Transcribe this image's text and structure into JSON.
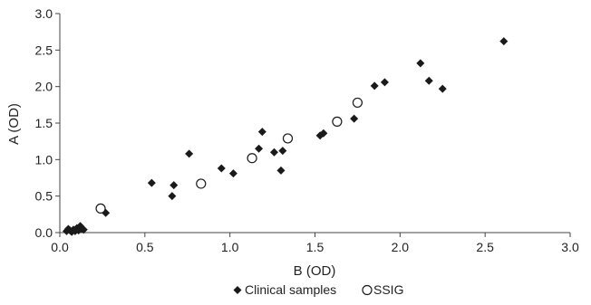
{
  "chart_data": {
    "type": "scatter",
    "title": "",
    "xlabel": "B (OD)",
    "ylabel": "A (OD)",
    "xlim": [
      0,
      3.0
    ],
    "ylim": [
      0,
      3.0
    ],
    "xticks": [
      "0.0",
      "0.5",
      "1.0",
      "1.5",
      "2.0",
      "2.5",
      "3.0"
    ],
    "yticks": [
      "0.0",
      "0.5",
      "1.0",
      "1.5",
      "2.0",
      "2.5",
      "3.0"
    ],
    "grid": false,
    "legend_position": "bottom",
    "series": [
      {
        "name": "Clinical samples",
        "marker": "filled-diamond",
        "color": "#1a1a1a",
        "points": [
          [
            0.04,
            0.02
          ],
          [
            0.05,
            0.05
          ],
          [
            0.06,
            0.03
          ],
          [
            0.07,
            0.01
          ],
          [
            0.08,
            0.04
          ],
          [
            0.09,
            0.02
          ],
          [
            0.1,
            0.06
          ],
          [
            0.11,
            0.03
          ],
          [
            0.12,
            0.09
          ],
          [
            0.13,
            0.05
          ],
          [
            0.14,
            0.04
          ],
          [
            0.27,
            0.27
          ],
          [
            0.54,
            0.68
          ],
          [
            0.66,
            0.5
          ],
          [
            0.67,
            0.65
          ],
          [
            0.76,
            1.08
          ],
          [
            0.95,
            0.88
          ],
          [
            1.02,
            0.81
          ],
          [
            1.17,
            1.15
          ],
          [
            1.19,
            1.38
          ],
          [
            1.26,
            1.1
          ],
          [
            1.3,
            0.85
          ],
          [
            1.31,
            1.12
          ],
          [
            1.53,
            1.33
          ],
          [
            1.55,
            1.36
          ],
          [
            1.73,
            1.56
          ],
          [
            1.85,
            2.01
          ],
          [
            1.91,
            2.06
          ],
          [
            2.12,
            2.32
          ],
          [
            2.17,
            2.08
          ],
          [
            2.25,
            1.97
          ],
          [
            2.61,
            2.62
          ]
        ]
      },
      {
        "name": "SSIG",
        "marker": "open-circle",
        "color": "#1a1a1a",
        "points": [
          [
            0.24,
            0.33
          ],
          [
            0.83,
            0.67
          ],
          [
            1.13,
            1.02
          ],
          [
            1.34,
            1.29
          ],
          [
            1.63,
            1.52
          ],
          [
            1.75,
            1.78
          ]
        ]
      }
    ]
  }
}
